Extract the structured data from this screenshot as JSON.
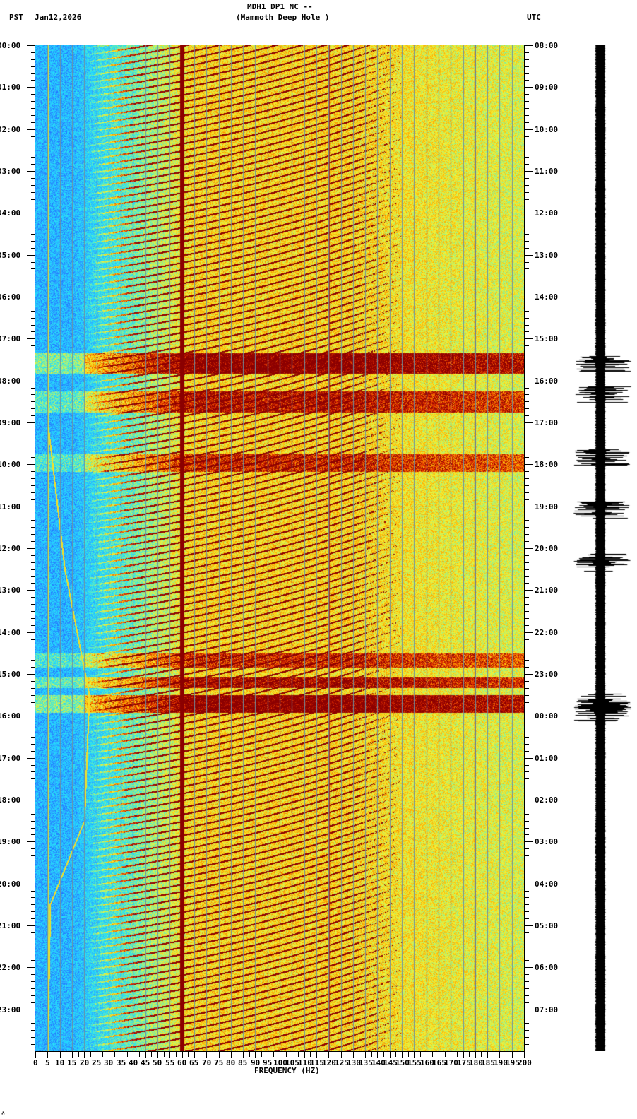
{
  "header": {
    "station_line": "MDH1 DP1 NC --",
    "location_line": "(Mammoth Deep Hole )",
    "left_tz": "PST",
    "date": "Jan12,2026",
    "right_tz": "UTC"
  },
  "footer": {
    "mark": "∴"
  },
  "colors": {
    "background": "#ffffff",
    "axis": "#000000",
    "gridline": "#6f8f9f",
    "colormap": [
      "#1a5cff",
      "#2fa8ff",
      "#1fe0ff",
      "#7ff0a0",
      "#f5f536",
      "#ffb000",
      "#e83000",
      "#8b0000"
    ],
    "trace": "#000000"
  },
  "chart_data": {
    "type": "heatmap",
    "title": "MDH1 DP1 NC -- (Mammoth Deep Hole )",
    "subtitle": "Jan12,2026",
    "xlabel": "FREQUENCY (HZ)",
    "ylabel_left": "PST",
    "ylabel_right": "UTC",
    "x_range": [
      0,
      200
    ],
    "x_ticks": [
      0,
      5,
      10,
      15,
      20,
      25,
      30,
      35,
      40,
      45,
      50,
      55,
      60,
      65,
      70,
      75,
      80,
      85,
      90,
      95,
      100,
      105,
      110,
      115,
      120,
      125,
      130,
      135,
      140,
      145,
      150,
      155,
      160,
      165,
      170,
      175,
      180,
      185,
      190,
      195,
      200
    ],
    "x_tick_labels": [
      "0",
      "5",
      "10",
      "15",
      "20",
      "25",
      "30",
      "35",
      "40",
      "45",
      "50",
      "55",
      "60",
      "65",
      "70",
      "75",
      "80",
      "85",
      "90",
      "95",
      "100",
      "105",
      "110",
      "115",
      "120",
      "125",
      "130",
      "135",
      "140",
      "145",
      "150",
      "155",
      "160",
      "165",
      "170",
      "175",
      "180",
      "185",
      "190",
      "195",
      "200"
    ],
    "x_minor_tick_step": 1,
    "y_left_labels": [
      "00:00",
      "01:00",
      "02:00",
      "03:00",
      "04:00",
      "05:00",
      "06:00",
      "07:00",
      "08:00",
      "09:00",
      "10:00",
      "11:00",
      "12:00",
      "13:00",
      "14:00",
      "15:00",
      "16:00",
      "17:00",
      "18:00",
      "19:00",
      "20:00",
      "21:00",
      "22:00",
      "23:00"
    ],
    "y_right_labels": [
      "08:00",
      "09:00",
      "10:00",
      "11:00",
      "12:00",
      "13:00",
      "14:00",
      "15:00",
      "16:00",
      "17:00",
      "18:00",
      "19:00",
      "20:00",
      "21:00",
      "22:00",
      "23:00",
      "00:00",
      "01:00",
      "02:00",
      "03:00",
      "04:00",
      "05:00",
      "06:00",
      "07:00"
    ],
    "y_minor_ticks_per_hour": 6,
    "hours": 24,
    "grid": true,
    "features": {
      "persistent_line_hz": 60,
      "faint_line_hz": 5,
      "faint_line_120hz": 120,
      "line_180hz": 180,
      "sweep_spacing_minutes": 10,
      "event_bands_pst": [
        {
          "start": "07:20",
          "end": "07:50",
          "label": "broadband event",
          "intensity": 0.9
        },
        {
          "start": "08:15",
          "end": "08:45",
          "label": "low-freq burst",
          "intensity": 0.7
        },
        {
          "start": "09:45",
          "end": "10:10",
          "label": "tonal event",
          "intensity": 0.6
        },
        {
          "start": "14:30",
          "end": "14:50",
          "label": "tonal event",
          "intensity": 0.6
        },
        {
          "start": "15:05",
          "end": "15:20",
          "label": "band",
          "intensity": 0.75
        },
        {
          "start": "15:30",
          "end": "15:55",
          "label": "broadband event",
          "intensity": 0.9
        }
      ],
      "low_freq_drift_hz": [
        {
          "time": "00:00",
          "hz": 5
        },
        {
          "time": "09:00",
          "hz": 5
        },
        {
          "time": "12:30",
          "hz": 12
        },
        {
          "time": "15:30",
          "hz": 22
        },
        {
          "time": "18:30",
          "hz": 20
        },
        {
          "time": "20:30",
          "hz": 6
        },
        {
          "time": "24:00",
          "hz": 5
        }
      ]
    },
    "seismogram": {
      "description": "24-hour trace on right side",
      "bursts_pst": [
        "07:30",
        "08:15",
        "09:45",
        "11:00",
        "12:15",
        "15:35",
        "15:50"
      ]
    }
  }
}
